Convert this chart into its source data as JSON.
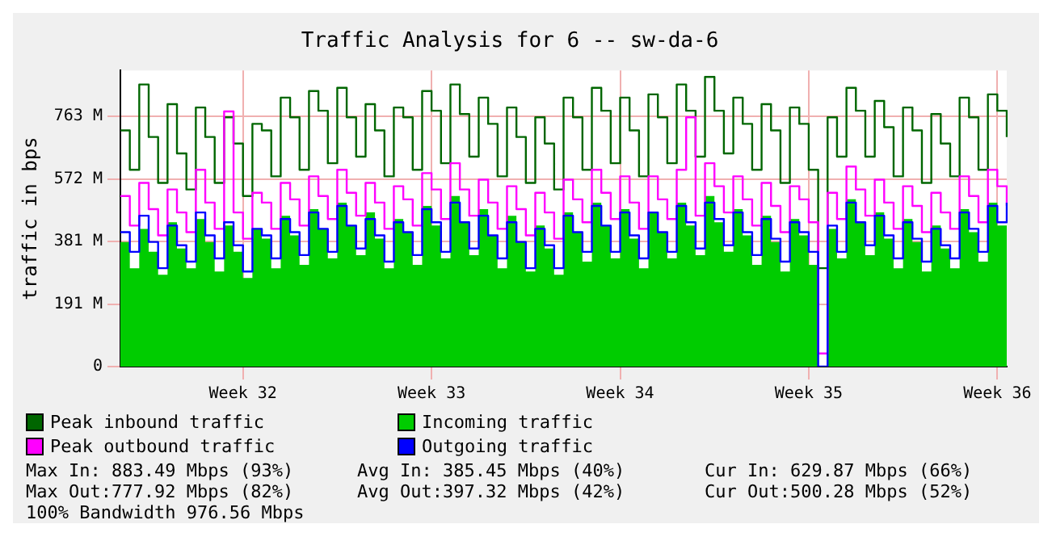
{
  "chart_data": {
    "type": "line",
    "title": "Traffic Analysis for 6 -- sw-da-6",
    "ylabel": "traffic in bps",
    "categories": [
      null,
      null,
      null,
      null,
      null,
      null,
      null,
      null,
      null,
      null,
      null,
      null,
      null,
      "Week 32",
      null,
      null,
      null,
      null,
      null,
      null,
      null,
      null,
      null,
      null,
      null,
      null,
      null,
      null,
      null,
      null,
      null,
      null,
      null,
      "Week 33",
      null,
      null,
      null,
      null,
      null,
      null,
      null,
      null,
      null,
      null,
      null,
      null,
      null,
      null,
      null,
      null,
      null,
      null,
      null,
      "Week 34",
      null,
      null,
      null,
      null,
      null,
      null,
      null,
      null,
      null,
      null,
      null,
      null,
      null,
      null,
      null,
      null,
      null,
      null,
      null,
      "Week 35",
      null,
      null,
      null,
      null,
      null,
      null,
      null,
      null,
      null,
      null,
      null,
      null,
      null,
      null,
      null,
      null,
      null,
      null,
      null,
      "Week 36",
      null
    ],
    "series": [
      {
        "name": "Peak inbound traffic",
        "type": "step",
        "color": "#006600",
        "values": [
          720,
          600,
          860,
          700,
          560,
          800,
          650,
          540,
          790,
          700,
          560,
          760,
          680,
          520,
          740,
          720,
          580,
          820,
          760,
          600,
          840,
          780,
          620,
          850,
          760,
          640,
          800,
          720,
          580,
          790,
          760,
          600,
          840,
          780,
          620,
          860,
          770,
          640,
          820,
          740,
          580,
          790,
          700,
          560,
          760,
          680,
          540,
          820,
          760,
          600,
          850,
          780,
          620,
          820,
          720,
          580,
          830,
          760,
          620,
          860,
          780,
          640,
          883,
          780,
          650,
          820,
          740,
          600,
          800,
          720,
          560,
          790,
          740,
          600,
          300,
          760,
          640,
          850,
          780,
          640,
          810,
          730,
          580,
          790,
          720,
          560,
          770,
          680,
          580,
          820,
          760,
          600,
          830,
          780,
          700
        ]
      },
      {
        "name": "Incoming traffic",
        "type": "area",
        "color": "#00cc00",
        "values": [
          380,
          300,
          420,
          350,
          280,
          440,
          360,
          300,
          450,
          380,
          290,
          430,
          350,
          270,
          420,
          390,
          300,
          460,
          400,
          310,
          480,
          420,
          330,
          500,
          430,
          340,
          470,
          390,
          300,
          450,
          410,
          310,
          490,
          430,
          330,
          520,
          440,
          340,
          480,
          400,
          300,
          460,
          380,
          290,
          430,
          360,
          280,
          470,
          410,
          320,
          500,
          430,
          330,
          480,
          390,
          300,
          470,
          410,
          330,
          500,
          430,
          340,
          520,
          440,
          350,
          480,
          400,
          310,
          460,
          380,
          290,
          450,
          400,
          310,
          0,
          420,
          330,
          510,
          440,
          340,
          470,
          390,
          300,
          450,
          380,
          290,
          430,
          360,
          300,
          480,
          410,
          320,
          500,
          430,
          630
        ]
      },
      {
        "name": "Peak outbound traffic",
        "type": "step",
        "color": "#ff00ff",
        "values": [
          520,
          430,
          560,
          480,
          400,
          540,
          470,
          410,
          600,
          500,
          420,
          778,
          470,
          390,
          530,
          500,
          420,
          560,
          510,
          430,
          580,
          520,
          450,
          600,
          530,
          460,
          560,
          500,
          420,
          550,
          510,
          430,
          590,
          540,
          450,
          620,
          540,
          460,
          570,
          500,
          420,
          550,
          480,
          400,
          530,
          470,
          390,
          570,
          510,
          440,
          600,
          530,
          450,
          580,
          500,
          420,
          580,
          510,
          450,
          600,
          760,
          460,
          620,
          550,
          470,
          580,
          510,
          430,
          560,
          490,
          410,
          550,
          510,
          440,
          40,
          530,
          450,
          610,
          540,
          460,
          570,
          500,
          420,
          550,
          490,
          410,
          530,
          470,
          420,
          580,
          520,
          440,
          600,
          550,
          490
        ]
      },
      {
        "name": "Outgoing traffic",
        "type": "step",
        "color": "#0000ff",
        "values": [
          410,
          350,
          460,
          380,
          300,
          430,
          370,
          320,
          470,
          400,
          330,
          440,
          370,
          290,
          420,
          400,
          330,
          450,
          410,
          340,
          470,
          420,
          350,
          490,
          430,
          360,
          450,
          400,
          320,
          440,
          410,
          340,
          480,
          440,
          350,
          500,
          440,
          360,
          460,
          400,
          330,
          440,
          380,
          300,
          420,
          370,
          300,
          460,
          410,
          350,
          490,
          430,
          350,
          470,
          400,
          330,
          470,
          410,
          350,
          490,
          440,
          360,
          500,
          450,
          370,
          470,
          410,
          340,
          450,
          390,
          320,
          440,
          410,
          350,
          0,
          430,
          350,
          500,
          440,
          370,
          460,
          400,
          330,
          440,
          390,
          320,
          420,
          370,
          330,
          470,
          420,
          350,
          490,
          440,
          500
        ]
      }
    ],
    "ylim": [
      0,
      903
    ],
    "yticks": [
      0,
      {
        "value": 190.73,
        "label": "191 M"
      },
      {
        "value": 381.47,
        "label": "381 M"
      },
      {
        "value": 572.2,
        "label": "572 M"
      },
      {
        "value": 762.94,
        "label": "763 M"
      }
    ],
    "grid": true,
    "legend": "bottom",
    "annotations": [
      "Max In: 883.49 Mbps (93%)",
      "Avg In: 385.45 Mbps (40%)",
      "Cur In: 629.87 Mbps (66%)",
      "Max Out:777.92 Mbps (82%)",
      "Avg Out:397.32 Mbps (42%)",
      "Cur Out:500.28 Mbps (52%)",
      "100% Bandwidth 976.56 Mbps"
    ]
  }
}
